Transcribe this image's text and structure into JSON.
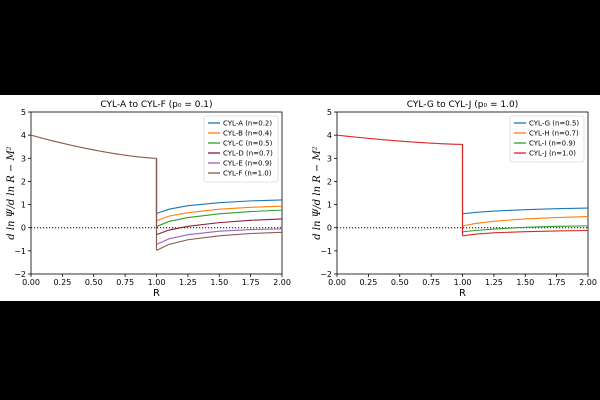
{
  "chart_data": [
    {
      "type": "line",
      "title": "CYL-A to CYL-F (p₀ = 0.1)",
      "xlabel": "R",
      "ylabel": "d ln Ψ/d ln R − M²",
      "xlim": [
        0.0,
        2.0
      ],
      "ylim": [
        -2,
        5
      ],
      "xticks": [
        "0.00",
        "0.25",
        "0.50",
        "0.75",
        "1.00",
        "1.25",
        "1.50",
        "1.75",
        "2.00"
      ],
      "yticks": [
        "−2",
        "−1",
        "0",
        "1",
        "2",
        "3",
        "4",
        "5"
      ],
      "legend_position": "top-right",
      "grid": false,
      "reference_line": {
        "y": 0,
        "style": "dotted"
      },
      "inner": {
        "start": 4.0,
        "end": 3.0
      },
      "series": [
        {
          "name": "CYL-A (n=0.2)",
          "color": "#1f77b4",
          "x": [
            1.0,
            1.1,
            1.25,
            1.5,
            1.75,
            2.0
          ],
          "y": [
            0.62,
            0.8,
            0.95,
            1.08,
            1.16,
            1.2
          ]
        },
        {
          "name": "CYL-B (n=0.4)",
          "color": "#ff7f0e",
          "x": [
            1.0,
            1.1,
            1.25,
            1.5,
            1.75,
            2.0
          ],
          "y": [
            0.3,
            0.5,
            0.65,
            0.8,
            0.88,
            0.93
          ]
        },
        {
          "name": "CYL-C (n=0.5)",
          "color": "#2ca02c",
          "x": [
            1.0,
            1.1,
            1.25,
            1.5,
            1.75,
            2.0
          ],
          "y": [
            0.05,
            0.27,
            0.44,
            0.6,
            0.7,
            0.76
          ]
        },
        {
          "name": "CYL-D (n=0.7)",
          "color": "#8c1c3a",
          "x": [
            1.0,
            1.1,
            1.25,
            1.5,
            1.75,
            2.0
          ],
          "y": [
            -0.3,
            -0.1,
            0.06,
            0.22,
            0.32,
            0.38
          ]
        },
        {
          "name": "CYL-E (n=0.9)",
          "color": "#9467bd",
          "x": [
            1.0,
            1.1,
            1.25,
            1.5,
            1.75,
            2.0
          ],
          "y": [
            -0.72,
            -0.48,
            -0.3,
            -0.15,
            -0.08,
            -0.05
          ]
        },
        {
          "name": "CYL-F (n=1.0)",
          "color": "#8c564b",
          "x": [
            1.0,
            1.1,
            1.25,
            1.5,
            1.75,
            2.0
          ],
          "y": [
            -0.98,
            -0.72,
            -0.52,
            -0.35,
            -0.25,
            -0.2
          ]
        }
      ]
    },
    {
      "type": "line",
      "title": "CYL-G to CYL-J (p₀ = 1.0)",
      "xlabel": "R",
      "ylabel": "d ln Ψ/d ln R − M²",
      "xlim": [
        0.0,
        2.0
      ],
      "ylim": [
        -2,
        5
      ],
      "xticks": [
        "0.00",
        "0.25",
        "0.50",
        "0.75",
        "1.00",
        "1.25",
        "1.50",
        "1.75",
        "2.00"
      ],
      "yticks": [
        "−2",
        "−1",
        "0",
        "1",
        "2",
        "3",
        "4",
        "5"
      ],
      "legend_position": "top-right",
      "grid": false,
      "reference_line": {
        "y": 0,
        "style": "dotted"
      },
      "inner": {
        "start": 4.0,
        "end": 3.6
      },
      "series": [
        {
          "name": "CYL-G (n=0.5)",
          "color": "#1f77b4",
          "x": [
            1.0,
            1.1,
            1.25,
            1.5,
            1.75,
            2.0
          ],
          "y": [
            0.6,
            0.66,
            0.72,
            0.78,
            0.82,
            0.85
          ]
        },
        {
          "name": "CYL-H (n=0.7)",
          "color": "#ff7f0e",
          "x": [
            1.0,
            1.1,
            1.25,
            1.5,
            1.75,
            2.0
          ],
          "y": [
            0.08,
            0.18,
            0.28,
            0.38,
            0.44,
            0.48
          ]
        },
        {
          "name": "CYL-I (n=0.9)",
          "color": "#2ca02c",
          "x": [
            1.0,
            1.1,
            1.25,
            1.5,
            1.75,
            2.0
          ],
          "y": [
            -0.18,
            -0.12,
            -0.06,
            0.02,
            0.06,
            0.08
          ]
        },
        {
          "name": "CYL-J (n=1.0)",
          "color": "#d62728",
          "x": [
            1.0,
            1.1,
            1.25,
            1.5,
            1.75,
            2.0
          ],
          "y": [
            -0.35,
            -0.28,
            -0.22,
            -0.17,
            -0.14,
            -0.12
          ]
        }
      ]
    }
  ]
}
